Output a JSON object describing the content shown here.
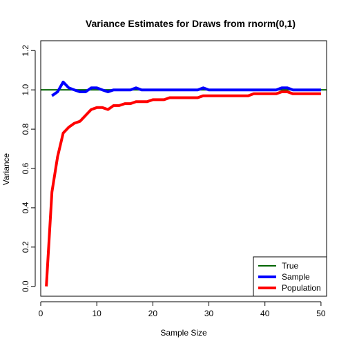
{
  "chart_data": {
    "type": "line",
    "title": "Variance Estimates for Draws from rnorm(0,1)",
    "xlabel": "Sample Size",
    "ylabel": "Variance",
    "xlim": [
      0,
      51
    ],
    "ylim": [
      -0.05,
      1.25
    ],
    "x_ticks": [
      0,
      10,
      20,
      30,
      40,
      50
    ],
    "x_tick_labels": [
      "0",
      "10",
      "20",
      "30",
      "40",
      "50"
    ],
    "y_ticks": [
      0.0,
      0.2,
      0.4,
      0.6,
      0.8,
      1.0,
      1.2
    ],
    "y_tick_labels": [
      "0.0",
      "0.2",
      "0.4",
      "0.6",
      "0.8",
      "1.0",
      "1.2"
    ],
    "grid": false,
    "legend_position": "bottom-right",
    "reference_line": {
      "name": "True",
      "y": 1.0,
      "color": "#006400"
    },
    "series": [
      {
        "name": "Sample",
        "color": "#0000ff",
        "x": [
          2,
          3,
          4,
          5,
          6,
          7,
          8,
          9,
          10,
          11,
          12,
          13,
          14,
          15,
          16,
          17,
          18,
          19,
          20,
          21,
          22,
          23,
          24,
          25,
          26,
          27,
          28,
          29,
          30,
          31,
          32,
          33,
          34,
          35,
          36,
          37,
          38,
          39,
          40,
          41,
          42,
          43,
          44,
          45,
          46,
          47,
          48,
          49,
          50
        ],
        "values": [
          0.97,
          0.99,
          1.04,
          1.01,
          1.0,
          0.99,
          0.99,
          1.01,
          1.01,
          1.0,
          0.99,
          1.0,
          1.0,
          1.0,
          1.0,
          1.01,
          1.0,
          1.0,
          1.0,
          1.0,
          1.0,
          1.0,
          1.0,
          1.0,
          1.0,
          1.0,
          1.0,
          1.01,
          1.0,
          1.0,
          1.0,
          1.0,
          1.0,
          1.0,
          1.0,
          1.0,
          1.0,
          1.0,
          1.0,
          1.0,
          1.0,
          1.01,
          1.01,
          1.0,
          1.0,
          1.0,
          1.0,
          1.0,
          1.0
        ]
      },
      {
        "name": "Population",
        "color": "#ff0000",
        "x": [
          1,
          2,
          3,
          4,
          5,
          6,
          7,
          8,
          9,
          10,
          11,
          12,
          13,
          14,
          15,
          16,
          17,
          18,
          19,
          20,
          21,
          22,
          23,
          24,
          25,
          26,
          27,
          28,
          29,
          30,
          31,
          32,
          33,
          34,
          35,
          36,
          37,
          38,
          39,
          40,
          41,
          42,
          43,
          44,
          45,
          46,
          47,
          48,
          49,
          50
        ],
        "values": [
          0.0,
          0.48,
          0.66,
          0.78,
          0.81,
          0.83,
          0.84,
          0.87,
          0.9,
          0.91,
          0.91,
          0.9,
          0.92,
          0.92,
          0.93,
          0.93,
          0.94,
          0.94,
          0.94,
          0.95,
          0.95,
          0.95,
          0.96,
          0.96,
          0.96,
          0.96,
          0.96,
          0.96,
          0.97,
          0.97,
          0.97,
          0.97,
          0.97,
          0.97,
          0.97,
          0.97,
          0.97,
          0.98,
          0.98,
          0.98,
          0.98,
          0.98,
          0.99,
          0.99,
          0.98,
          0.98,
          0.98,
          0.98,
          0.98,
          0.98
        ]
      }
    ],
    "legend": [
      "True",
      "Sample",
      "Population"
    ]
  }
}
